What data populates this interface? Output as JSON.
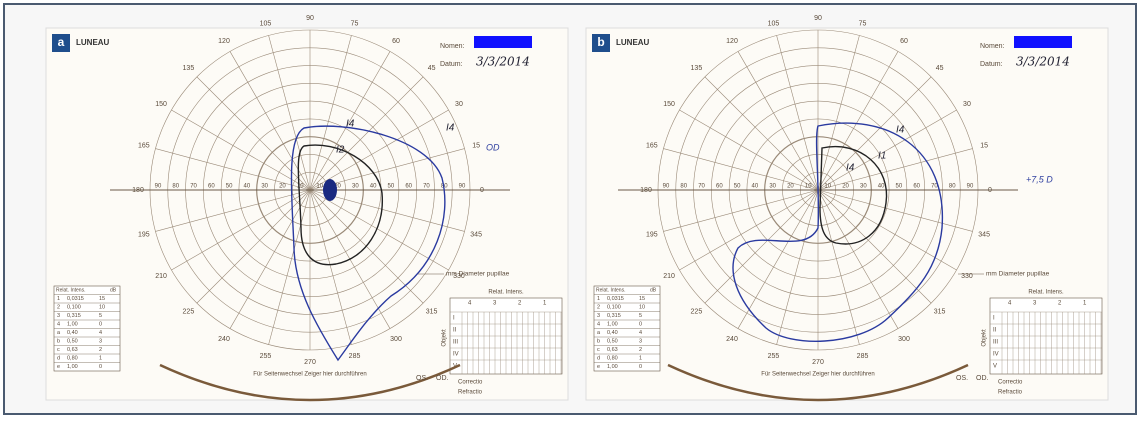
{
  "panels": [
    {
      "label": "a",
      "brand": "LUNEAU",
      "name_label": "Nomen:",
      "date_label": "Datum:",
      "date": "3/3/2014",
      "note": "OD",
      "angle_labels": [
        "0",
        "15",
        "30",
        "45",
        "60",
        "75",
        "90",
        "105",
        "120",
        "135",
        "150",
        "165",
        "180",
        "195",
        "210",
        "225",
        "240",
        "255",
        "270",
        "285",
        "300",
        "315",
        "330",
        "345"
      ],
      "radial_labels": [
        "90",
        "80",
        "70",
        "60",
        "50",
        "40",
        "30",
        "20",
        "10"
      ],
      "isopter_labels": [
        "I4",
        "I2",
        "I4"
      ],
      "pupil_label": "mm  Diameter pupillae",
      "table_header": [
        "Relat. Intens.",
        "dB"
      ],
      "table_rows": [
        [
          "1",
          "0,0315",
          "15"
        ],
        [
          "2",
          "0,100",
          "10"
        ],
        [
          "3",
          "0,315",
          "5"
        ],
        [
          "4",
          "1,00",
          "0"
        ],
        [
          "a",
          "0,40",
          "4"
        ],
        [
          "b",
          "0,50",
          "3"
        ],
        [
          "c",
          "0,63",
          "2"
        ],
        [
          "d",
          "0,80",
          "1"
        ],
        [
          "e",
          "1,00",
          "0"
        ]
      ],
      "grid_header": "Relat. Intens.",
      "grid_columns": [
        "4",
        "3",
        "2",
        "1"
      ],
      "grid_rows": [
        "I",
        "II",
        "III",
        "IV",
        "V"
      ],
      "object_label": "Objekt",
      "arrow_text": "Für Seitenwechsel Zeiger hier durchführen",
      "eye_labels": [
        "OS.",
        "OD."
      ],
      "correction_label": "Correctio",
      "refraction_label": "Refractio"
    },
    {
      "label": "b",
      "brand": "LUNEAU",
      "name_label": "Nomen:",
      "date_label": "Datum:",
      "date": "3/3/2014",
      "note": "+7,5 D",
      "angle_labels": [
        "0",
        "15",
        "30",
        "45",
        "60",
        "75",
        "90",
        "105",
        "120",
        "135",
        "150",
        "165",
        "180",
        "195",
        "210",
        "225",
        "240",
        "255",
        "270",
        "285",
        "300",
        "315",
        "330",
        "345"
      ],
      "radial_labels": [
        "90",
        "80",
        "70",
        "60",
        "50",
        "40",
        "30",
        "20",
        "10"
      ],
      "isopter_labels": [
        "I4",
        "I1",
        "I4"
      ],
      "pupil_label": "mm  Diameter pupillae",
      "table_header": [
        "Relat. Intens.",
        "dB"
      ],
      "table_rows": [
        [
          "1",
          "0,0315",
          "15"
        ],
        [
          "2",
          "0,100",
          "10"
        ],
        [
          "3",
          "0,315",
          "5"
        ],
        [
          "4",
          "1,00",
          "0"
        ],
        [
          "a",
          "0,40",
          "4"
        ],
        [
          "b",
          "0,50",
          "3"
        ],
        [
          "c",
          "0,63",
          "2"
        ],
        [
          "d",
          "0,80",
          "1"
        ],
        [
          "e",
          "1,00",
          "0"
        ]
      ],
      "grid_header": "Relat. Intens.",
      "grid_columns": [
        "4",
        "3",
        "2",
        "1"
      ],
      "grid_rows": [
        "I",
        "II",
        "III",
        "IV",
        "V"
      ],
      "object_label": "Objekt",
      "arrow_text": "Für Seitenwechsel Zeiger hier durchführen",
      "eye_labels": [
        "OS.",
        "OD."
      ],
      "correction_label": "Correctio",
      "refraction_label": "Refractio"
    }
  ]
}
